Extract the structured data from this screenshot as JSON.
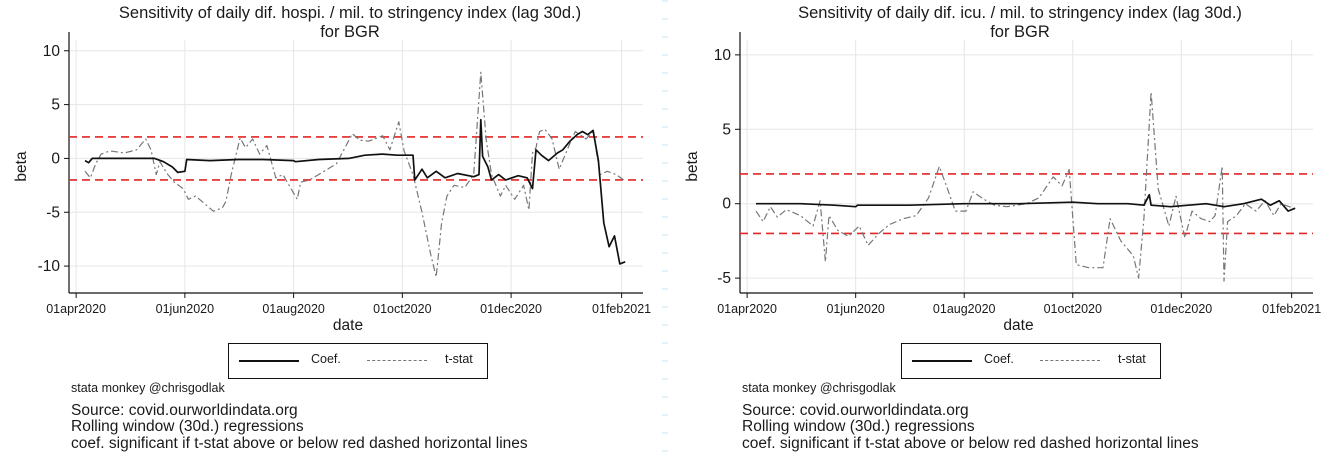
{
  "chart_data": [
    {
      "type": "line",
      "title": "Sensitivity of daily dif. hospi. / mil. to stringency index (lag 30d.)",
      "subtitle": "for BGR",
      "xlabel": "date",
      "ylabel": "beta",
      "x_ticks": [
        "01apr2020",
        "01jun2020",
        "01aug2020",
        "01oct2020",
        "01dec2020",
        "01feb2021"
      ],
      "y_ticks": [
        -10,
        -5,
        0,
        5,
        10
      ],
      "ylim": [
        -12.5,
        11
      ],
      "xlim": [
        "2020-03-28",
        "2021-02-13"
      ],
      "grid": true,
      "thresholds": [
        2,
        -2
      ],
      "legend": {
        "position": "bottom",
        "entries": [
          "Coef.",
          "t-stat"
        ]
      },
      "series": [
        {
          "name": "Coef.",
          "style": "solid",
          "color": "#111111",
          "points": [
            [
              "2020-04-06",
              -0.2
            ],
            [
              "2020-04-08",
              -0.4
            ],
            [
              "2020-04-10",
              0
            ],
            [
              "2020-04-20",
              0
            ],
            [
              "2020-05-05",
              0
            ],
            [
              "2020-05-15",
              0
            ],
            [
              "2020-05-20",
              -0.3
            ],
            [
              "2020-05-25",
              -0.8
            ],
            [
              "2020-05-28",
              -1.3
            ],
            [
              "2020-06-01",
              -1.2
            ],
            [
              "2020-06-02",
              -0.1
            ],
            [
              "2020-06-15",
              -0.2
            ],
            [
              "2020-07-01",
              -0.1
            ],
            [
              "2020-07-15",
              -0.1
            ],
            [
              "2020-08-01",
              -0.2
            ],
            [
              "2020-08-02",
              -0.3
            ],
            [
              "2020-08-15",
              -0.1
            ],
            [
              "2020-09-01",
              0
            ],
            [
              "2020-09-10",
              0.3
            ],
            [
              "2020-09-20",
              0.4
            ],
            [
              "2020-09-28",
              0.3
            ],
            [
              "2020-10-07",
              0.3
            ],
            [
              "2020-10-08",
              -2
            ],
            [
              "2020-10-12",
              -1
            ],
            [
              "2020-10-15",
              -1.8
            ],
            [
              "2020-10-20",
              -1.2
            ],
            [
              "2020-10-25",
              -1.8
            ],
            [
              "2020-11-01",
              -1.4
            ],
            [
              "2020-11-10",
              -1.7
            ],
            [
              "2020-11-13",
              -1.5
            ],
            [
              "2020-11-14",
              3.6
            ],
            [
              "2020-11-15",
              0.2
            ],
            [
              "2020-11-18",
              -0.8
            ],
            [
              "2020-11-20",
              -2
            ],
            [
              "2020-11-24",
              -1.5
            ],
            [
              "2020-11-28",
              -2
            ],
            [
              "2020-12-05",
              -1.6
            ],
            [
              "2020-12-10",
              -1.8
            ],
            [
              "2020-12-13",
              -2.8
            ],
            [
              "2020-12-15",
              0.8
            ],
            [
              "2020-12-18",
              0.3
            ],
            [
              "2020-12-22",
              -0.2
            ],
            [
              "2020-12-27",
              0.5
            ],
            [
              "2020-12-30",
              0.8
            ],
            [
              "2021-01-03",
              1.6
            ],
            [
              "2021-01-07",
              2.2
            ],
            [
              "2021-01-10",
              2.5
            ],
            [
              "2021-01-13",
              2.2
            ],
            [
              "2021-01-16",
              2.6
            ],
            [
              "2021-01-19",
              -0.2
            ],
            [
              "2021-01-22",
              -6
            ],
            [
              "2021-01-25",
              -8.2
            ],
            [
              "2021-01-28",
              -7.2
            ],
            [
              "2021-01-31",
              -9.8
            ],
            [
              "2021-02-03",
              -9.6
            ]
          ]
        },
        {
          "name": "t-stat",
          "style": "dashed",
          "color": "#777777",
          "points": [
            [
              "2020-04-06",
              -1.2
            ],
            [
              "2020-04-09",
              -1.8
            ],
            [
              "2020-04-12",
              -0.5
            ],
            [
              "2020-04-15",
              0.4
            ],
            [
              "2020-04-20",
              0.7
            ],
            [
              "2020-04-28",
              0.5
            ],
            [
              "2020-05-05",
              0.8
            ],
            [
              "2020-05-10",
              1.8
            ],
            [
              "2020-05-13",
              0.8
            ],
            [
              "2020-05-16",
              -1.5
            ],
            [
              "2020-05-18",
              -0.3
            ],
            [
              "2020-05-22",
              -1.4
            ],
            [
              "2020-05-26",
              -2.2
            ],
            [
              "2020-05-31",
              -2.8
            ],
            [
              "2020-06-03",
              -3.8
            ],
            [
              "2020-06-07",
              -3.5
            ],
            [
              "2020-06-12",
              -4.2
            ],
            [
              "2020-06-17",
              -4.9
            ],
            [
              "2020-06-22",
              -4.6
            ],
            [
              "2020-06-24",
              -4
            ],
            [
              "2020-06-27",
              -1.5
            ],
            [
              "2020-07-02",
              1.9
            ],
            [
              "2020-07-05",
              1
            ],
            [
              "2020-07-09",
              1.8
            ],
            [
              "2020-07-13",
              0.4
            ],
            [
              "2020-07-17",
              1.2
            ],
            [
              "2020-07-22",
              -1.8
            ],
            [
              "2020-07-26",
              -1.5
            ],
            [
              "2020-08-03",
              -3.8
            ],
            [
              "2020-08-05",
              -2.2
            ],
            [
              "2020-08-10",
              -2
            ],
            [
              "2020-08-16",
              -1.4
            ],
            [
              "2020-08-25",
              -0.5
            ],
            [
              "2020-09-03",
              2.3
            ],
            [
              "2020-09-07",
              1.7
            ],
            [
              "2020-09-12",
              1.6
            ],
            [
              "2020-09-20",
              2.1
            ],
            [
              "2020-09-24",
              0.8
            ],
            [
              "2020-09-29",
              3.4
            ],
            [
              "2020-10-02",
              0.7
            ],
            [
              "2020-10-07",
              -1.5
            ],
            [
              "2020-10-12",
              -5
            ],
            [
              "2020-10-17",
              -9
            ],
            [
              "2020-10-20",
              -11
            ],
            [
              "2020-10-23",
              -6
            ],
            [
              "2020-10-26",
              -3.5
            ],
            [
              "2020-10-30",
              -2.5
            ],
            [
              "2020-11-05",
              -2.7
            ],
            [
              "2020-11-10",
              -1.5
            ],
            [
              "2020-11-14",
              8
            ],
            [
              "2020-11-17",
              1.8
            ],
            [
              "2020-11-20",
              -1.5
            ],
            [
              "2020-11-25",
              -3.5
            ],
            [
              "2020-11-28",
              -2.5
            ],
            [
              "2020-12-03",
              -3.8
            ],
            [
              "2020-12-08",
              -2.5
            ],
            [
              "2020-12-11",
              -4.8
            ],
            [
              "2020-12-13",
              0.5
            ],
            [
              "2020-12-15",
              1
            ],
            [
              "2020-12-17",
              2.5
            ],
            [
              "2020-12-20",
              2.7
            ],
            [
              "2020-12-24",
              1.8
            ],
            [
              "2020-12-28",
              -1
            ],
            [
              "2021-01-03",
              1.4
            ],
            [
              "2021-01-06",
              2.5
            ],
            [
              "2021-01-12",
              1.8
            ],
            [
              "2021-01-16",
              2.5
            ],
            [
              "2021-01-20",
              -1.5
            ],
            [
              "2021-01-24",
              -1.2
            ],
            [
              "2021-01-29",
              -1.5
            ],
            [
              "2021-02-03",
              -2.1
            ]
          ]
        }
      ],
      "legend_labels": {
        "coef": "Coef.",
        "tstat": "t-stat"
      },
      "credit": "stata monkey @chrisgodlak",
      "notes": [
        "Source: covid.ourworldindata.org",
        "Rolling window (30d.) regressions",
        "coef. significant if t-stat above or below red dashed horizontal lines"
      ]
    },
    {
      "type": "line",
      "title": "Sensitivity of daily dif. icu. / mil. to stringency index (lag 30d.)",
      "subtitle": "for BGR",
      "xlabel": "date",
      "ylabel": "beta",
      "x_ticks": [
        "01apr2020",
        "01jun2020",
        "01aug2020",
        "01oct2020",
        "01dec2020",
        "01feb2021"
      ],
      "y_ticks": [
        -5,
        0,
        5,
        10
      ],
      "ylim": [
        -6,
        11
      ],
      "xlim": [
        "2020-03-28",
        "2021-02-13"
      ],
      "grid": true,
      "thresholds": [
        2,
        -2
      ],
      "legend": {
        "position": "bottom",
        "entries": [
          "Coef.",
          "t-stat"
        ]
      },
      "series": [
        {
          "name": "Coef.",
          "style": "solid",
          "color": "#111111",
          "points": [
            [
              "2020-04-06",
              0
            ],
            [
              "2020-05-01",
              0
            ],
            [
              "2020-05-20",
              -0.1
            ],
            [
              "2020-06-01",
              -0.2
            ],
            [
              "2020-06-02",
              -0.1
            ],
            [
              "2020-07-01",
              -0.1
            ],
            [
              "2020-08-01",
              0
            ],
            [
              "2020-09-01",
              0
            ],
            [
              "2020-10-01",
              0.1
            ],
            [
              "2020-10-15",
              0
            ],
            [
              "2020-11-01",
              0
            ],
            [
              "2020-11-10",
              -0.1
            ],
            [
              "2020-11-13",
              0.6
            ],
            [
              "2020-11-14",
              -0.1
            ],
            [
              "2020-11-25",
              -0.2
            ],
            [
              "2020-12-05",
              -0.1
            ],
            [
              "2020-12-15",
              0
            ],
            [
              "2020-12-25",
              -0.2
            ],
            [
              "2021-01-05",
              0
            ],
            [
              "2021-01-15",
              0.3
            ],
            [
              "2021-01-20",
              -0.1
            ],
            [
              "2021-01-25",
              0.2
            ],
            [
              "2021-01-30",
              -0.5
            ],
            [
              "2021-02-03",
              -0.3
            ]
          ]
        },
        {
          "name": "t-stat",
          "style": "dashed",
          "color": "#777777",
          "points": [
            [
              "2020-04-06",
              -0.5
            ],
            [
              "2020-04-10",
              -1.2
            ],
            [
              "2020-04-14",
              -0.2
            ],
            [
              "2020-04-18",
              -0.9
            ],
            [
              "2020-04-23",
              -0.4
            ],
            [
              "2020-05-01",
              -0.8
            ],
            [
              "2020-05-08",
              -1.5
            ],
            [
              "2020-05-12",
              0.2
            ],
            [
              "2020-05-15",
              -3.9
            ],
            [
              "2020-05-17",
              -0.8
            ],
            [
              "2020-05-22",
              -1.8
            ],
            [
              "2020-05-28",
              -2.2
            ],
            [
              "2020-06-03",
              -1.5
            ],
            [
              "2020-06-08",
              -2.8
            ],
            [
              "2020-06-14",
              -2
            ],
            [
              "2020-06-20",
              -1.4
            ],
            [
              "2020-06-28",
              -1
            ],
            [
              "2020-07-05",
              -0.8
            ],
            [
              "2020-07-12",
              0.4
            ],
            [
              "2020-07-18",
              2.5
            ],
            [
              "2020-07-22",
              1.2
            ],
            [
              "2020-07-27",
              -0.5
            ],
            [
              "2020-08-02",
              -0.5
            ],
            [
              "2020-08-06",
              0.8
            ],
            [
              "2020-08-12",
              0.3
            ],
            [
              "2020-08-18",
              -0.1
            ],
            [
              "2020-08-25",
              -0.2
            ],
            [
              "2020-09-05",
              0
            ],
            [
              "2020-09-12",
              0.4
            ],
            [
              "2020-09-20",
              1.8
            ],
            [
              "2020-09-25",
              1.2
            ],
            [
              "2020-09-29",
              2.3
            ],
            [
              "2020-10-03",
              -4.1
            ],
            [
              "2020-10-10",
              -4.3
            ],
            [
              "2020-10-18",
              -4.3
            ],
            [
              "2020-10-22",
              -1
            ],
            [
              "2020-10-28",
              -2.5
            ],
            [
              "2020-11-04",
              -3.5
            ],
            [
              "2020-11-07",
              -5
            ],
            [
              "2020-11-10",
              -1
            ],
            [
              "2020-11-14",
              7.5
            ],
            [
              "2020-11-18",
              1
            ],
            [
              "2020-11-24",
              -1.5
            ],
            [
              "2020-11-28",
              0.5
            ],
            [
              "2020-12-03",
              -2.3
            ],
            [
              "2020-12-07",
              -0.5
            ],
            [
              "2020-12-12",
              -1
            ],
            [
              "2020-12-17",
              -1.2
            ],
            [
              "2020-12-20",
              -0.8
            ],
            [
              "2020-12-24",
              2.5
            ],
            [
              "2020-12-25",
              -5.2
            ],
            [
              "2020-12-27",
              -1.2
            ],
            [
              "2021-01-01",
              -0.8
            ],
            [
              "2021-01-06",
              0
            ],
            [
              "2021-01-12",
              -0.5
            ],
            [
              "2021-01-17",
              0.2
            ],
            [
              "2021-01-22",
              -0.8
            ],
            [
              "2021-01-26",
              0
            ],
            [
              "2021-02-02",
              -0.3
            ]
          ]
        }
      ],
      "legend_labels": {
        "coef": "Coef.",
        "tstat": "t-stat"
      },
      "credit": "stata monkey @chrisgodlak",
      "notes": [
        "Source: covid.ourworldindata.org",
        "Rolling window (30d.) regressions",
        "coef. significant if t-stat above or below red dashed horizontal lines"
      ]
    }
  ],
  "colors": {
    "threshold": "#e32626",
    "coef": "#111111",
    "tstat": "#777777",
    "grid": "#e6e6e6",
    "axis": "#111111"
  }
}
